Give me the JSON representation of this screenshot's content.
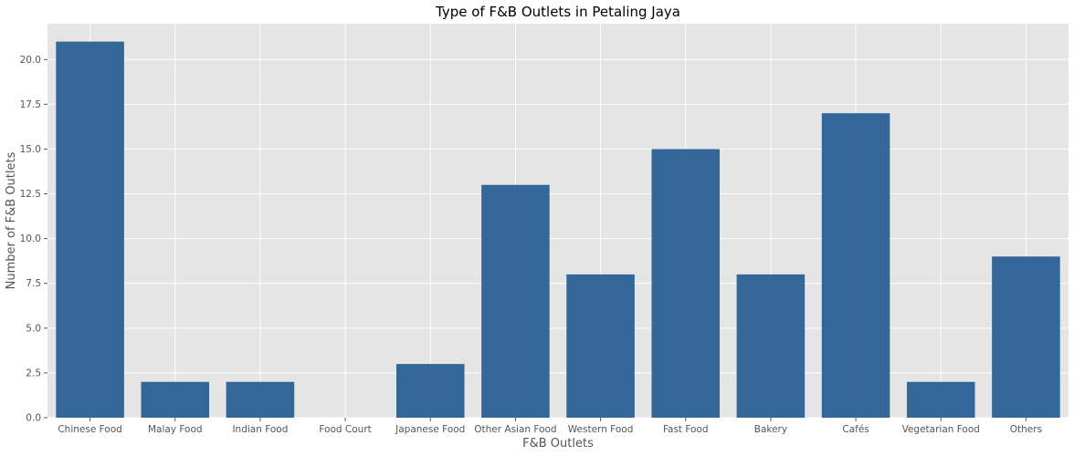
{
  "chart_data": {
    "type": "bar",
    "title": "Type of F&B Outlets in Petaling Jaya",
    "xlabel": "F&B Outlets",
    "ylabel": "Number of F&B Outlets",
    "categories": [
      "Chinese Food",
      "Malay Food",
      "Indian Food",
      "Food Court",
      "Japanese Food",
      "Other Asian Food",
      "Western Food",
      "Fast Food",
      "Bakery",
      "Cafés",
      "Vegetarian Food",
      "Others"
    ],
    "values": [
      21,
      2,
      2,
      0,
      3,
      13,
      8,
      15,
      8,
      17,
      2,
      9
    ],
    "ylim": [
      0,
      22
    ],
    "yticks": [
      "0.0",
      "2.5",
      "5.0",
      "7.5",
      "10.0",
      "12.5",
      "15.0",
      "17.5",
      "20.0"
    ],
    "grid": true,
    "legend": "none",
    "colors": {
      "bar": "#336699",
      "plot_background": "#e5e5e5",
      "grid": "#ffffff"
    }
  }
}
